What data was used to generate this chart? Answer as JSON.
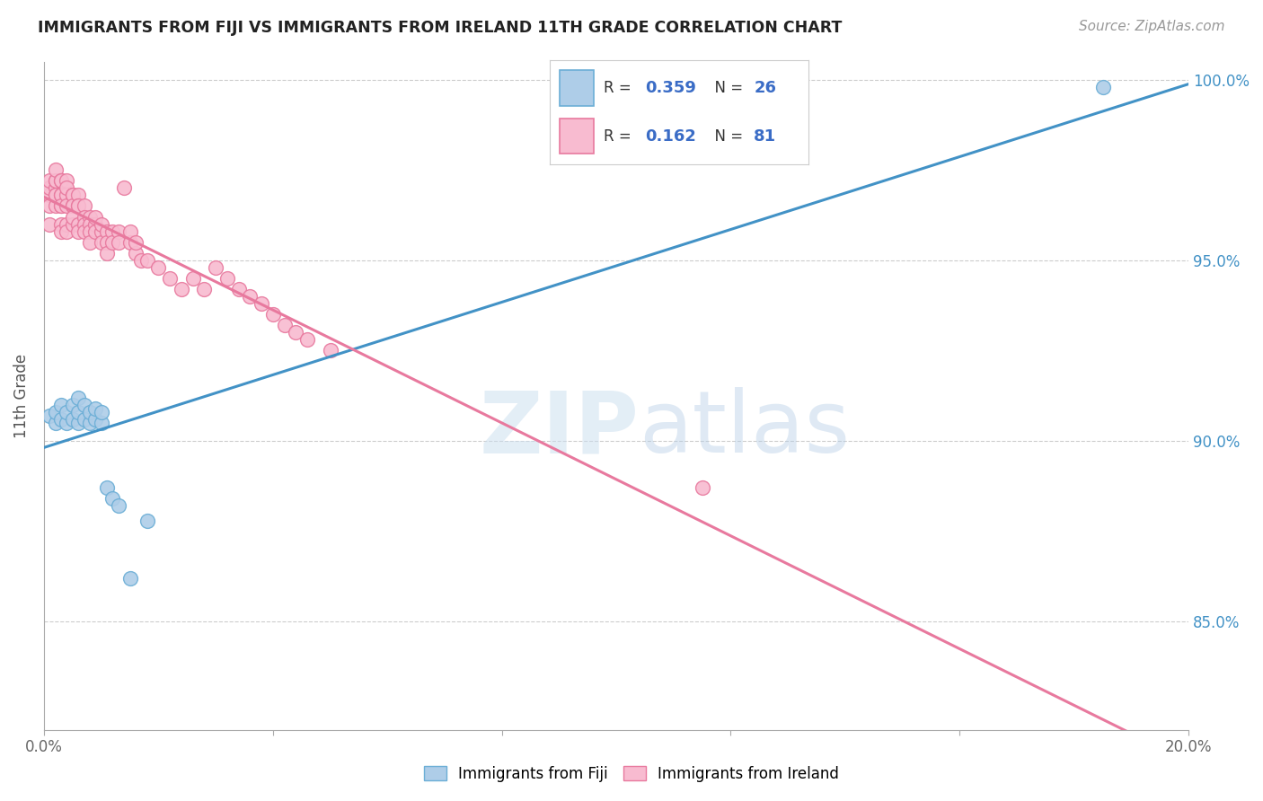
{
  "title": "IMMIGRANTS FROM FIJI VS IMMIGRANTS FROM IRELAND 11TH GRADE CORRELATION CHART",
  "source": "Source: ZipAtlas.com",
  "ylabel": "11th Grade",
  "watermark": "ZIPatlas",
  "xlim": [
    0.0,
    0.2
  ],
  "ylim": [
    0.82,
    1.005
  ],
  "xtick_positions": [
    0.0,
    0.04,
    0.08,
    0.12,
    0.16,
    0.2
  ],
  "xtick_labels": [
    "0.0%",
    "",
    "",
    "",
    "",
    "20.0%"
  ],
  "ytick_positions": [
    0.85,
    0.9,
    0.95,
    1.0
  ],
  "ytick_labels": [
    "85.0%",
    "90.0%",
    "95.0%",
    "100.0%"
  ],
  "fiji_color_edge": "#6baed6",
  "fiji_color_fill": "#aecde8",
  "ireland_color_edge": "#e8799e",
  "ireland_color_fill": "#f8bbd0",
  "fiji_line_color": "#4292c6",
  "ireland_line_color": "#e8799e",
  "fiji_R": "0.359",
  "fiji_N": "26",
  "ireland_R": "0.162",
  "ireland_N": "81",
  "label_color_R": "#333333",
  "label_color_val": "#3a6cc6",
  "label_color_N_val": "#e06020",
  "background_color": "#ffffff",
  "grid_color": "#cccccc",
  "fiji_points_x": [
    0.001,
    0.002,
    0.002,
    0.003,
    0.003,
    0.004,
    0.004,
    0.005,
    0.005,
    0.006,
    0.006,
    0.006,
    0.007,
    0.007,
    0.008,
    0.008,
    0.009,
    0.009,
    0.01,
    0.01,
    0.011,
    0.012,
    0.013,
    0.015,
    0.018,
    0.185
  ],
  "fiji_points_y": [
    0.907,
    0.905,
    0.908,
    0.906,
    0.91,
    0.905,
    0.908,
    0.906,
    0.91,
    0.905,
    0.908,
    0.912,
    0.906,
    0.91,
    0.905,
    0.908,
    0.906,
    0.909,
    0.905,
    0.908,
    0.887,
    0.884,
    0.882,
    0.862,
    0.878,
    0.998
  ],
  "ireland_points_x": [
    0.001,
    0.001,
    0.001,
    0.001,
    0.001,
    0.002,
    0.002,
    0.002,
    0.002,
    0.002,
    0.002,
    0.002,
    0.003,
    0.003,
    0.003,
    0.003,
    0.003,
    0.003,
    0.003,
    0.003,
    0.004,
    0.004,
    0.004,
    0.004,
    0.004,
    0.004,
    0.005,
    0.005,
    0.005,
    0.005,
    0.005,
    0.005,
    0.006,
    0.006,
    0.006,
    0.006,
    0.006,
    0.007,
    0.007,
    0.007,
    0.007,
    0.008,
    0.008,
    0.008,
    0.008,
    0.009,
    0.009,
    0.009,
    0.01,
    0.01,
    0.01,
    0.011,
    0.011,
    0.011,
    0.012,
    0.012,
    0.013,
    0.013,
    0.014,
    0.015,
    0.015,
    0.016,
    0.016,
    0.017,
    0.018,
    0.02,
    0.022,
    0.024,
    0.026,
    0.028,
    0.03,
    0.032,
    0.034,
    0.036,
    0.038,
    0.04,
    0.042,
    0.044,
    0.046,
    0.05,
    0.115
  ],
  "ireland_points_y": [
    0.968,
    0.97,
    0.972,
    0.965,
    0.96,
    0.97,
    0.968,
    0.972,
    0.965,
    0.968,
    0.972,
    0.975,
    0.968,
    0.965,
    0.972,
    0.968,
    0.96,
    0.965,
    0.972,
    0.958,
    0.968,
    0.965,
    0.972,
    0.97,
    0.96,
    0.958,
    0.968,
    0.965,
    0.96,
    0.968,
    0.965,
    0.962,
    0.968,
    0.965,
    0.96,
    0.958,
    0.965,
    0.965,
    0.962,
    0.96,
    0.958,
    0.962,
    0.96,
    0.958,
    0.955,
    0.96,
    0.958,
    0.962,
    0.958,
    0.955,
    0.96,
    0.958,
    0.955,
    0.952,
    0.958,
    0.955,
    0.958,
    0.955,
    0.97,
    0.955,
    0.958,
    0.952,
    0.955,
    0.95,
    0.95,
    0.948,
    0.945,
    0.942,
    0.945,
    0.942,
    0.948,
    0.945,
    0.942,
    0.94,
    0.938,
    0.935,
    0.932,
    0.93,
    0.928,
    0.925,
    0.887
  ]
}
